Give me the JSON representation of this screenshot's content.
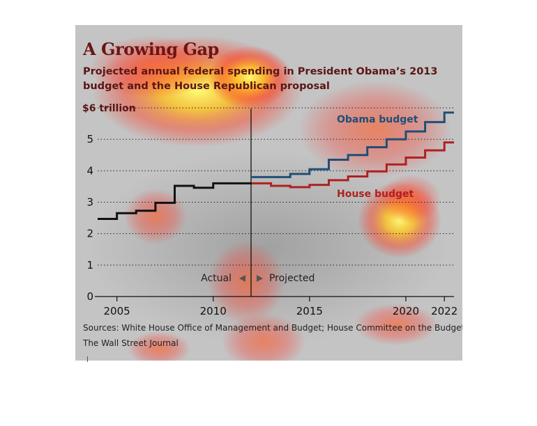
{
  "title": "A Growing Gap",
  "subtitle": "Projected annual federal spending in President Obama’s 2013 budget and the House Republican proposal",
  "sources": "Sources: White House Office of Management and Budget; House Committee on the Budget",
  "credit": "The Wall Street Journal",
  "colors": {
    "actual": "#111111",
    "obama": "#1f4e79",
    "house": "#b02020",
    "title": "#6b1515",
    "background": "#c4c4c4"
  },
  "chart_data": {
    "type": "line",
    "step": true,
    "ylim": [
      0,
      6
    ],
    "xlim": [
      2004,
      2022.5
    ],
    "y_ticks": [
      {
        "value": 0,
        "label": "0"
      },
      {
        "value": 1,
        "label": "1"
      },
      {
        "value": 2,
        "label": "2"
      },
      {
        "value": 3,
        "label": "3"
      },
      {
        "value": 4,
        "label": "4"
      },
      {
        "value": 5,
        "label": "5"
      },
      {
        "value": 6,
        "label": "$6 trillion"
      }
    ],
    "x_ticks": [
      2005,
      2010,
      2015,
      2020,
      2022
    ],
    "grid": "dotted horizontal",
    "divider_year": 2012,
    "annotations": {
      "actual": "Actual",
      "projected": "Projected"
    },
    "series": [
      {
        "key": "actual",
        "x": [
          2004,
          2005,
          2006,
          2007,
          2008,
          2009,
          2010,
          2011
        ],
        "values": [
          2.47,
          2.65,
          2.73,
          2.98,
          3.52,
          3.46,
          3.6,
          3.6
        ]
      },
      {
        "key": "obama",
        "name": "Obama budget",
        "x": [
          2012,
          2013,
          2014,
          2015,
          2016,
          2017,
          2018,
          2019,
          2020,
          2021,
          2022
        ],
        "values": [
          3.8,
          3.8,
          3.9,
          4.05,
          4.35,
          4.5,
          4.75,
          5.0,
          5.25,
          5.55,
          5.85
        ]
      },
      {
        "key": "house",
        "name": "House budget",
        "x": [
          2012,
          2013,
          2014,
          2015,
          2016,
          2017,
          2018,
          2019,
          2020,
          2021,
          2022
        ],
        "values": [
          3.6,
          3.52,
          3.48,
          3.55,
          3.7,
          3.82,
          3.98,
          4.2,
          4.42,
          4.65,
          4.9
        ]
      }
    ]
  }
}
